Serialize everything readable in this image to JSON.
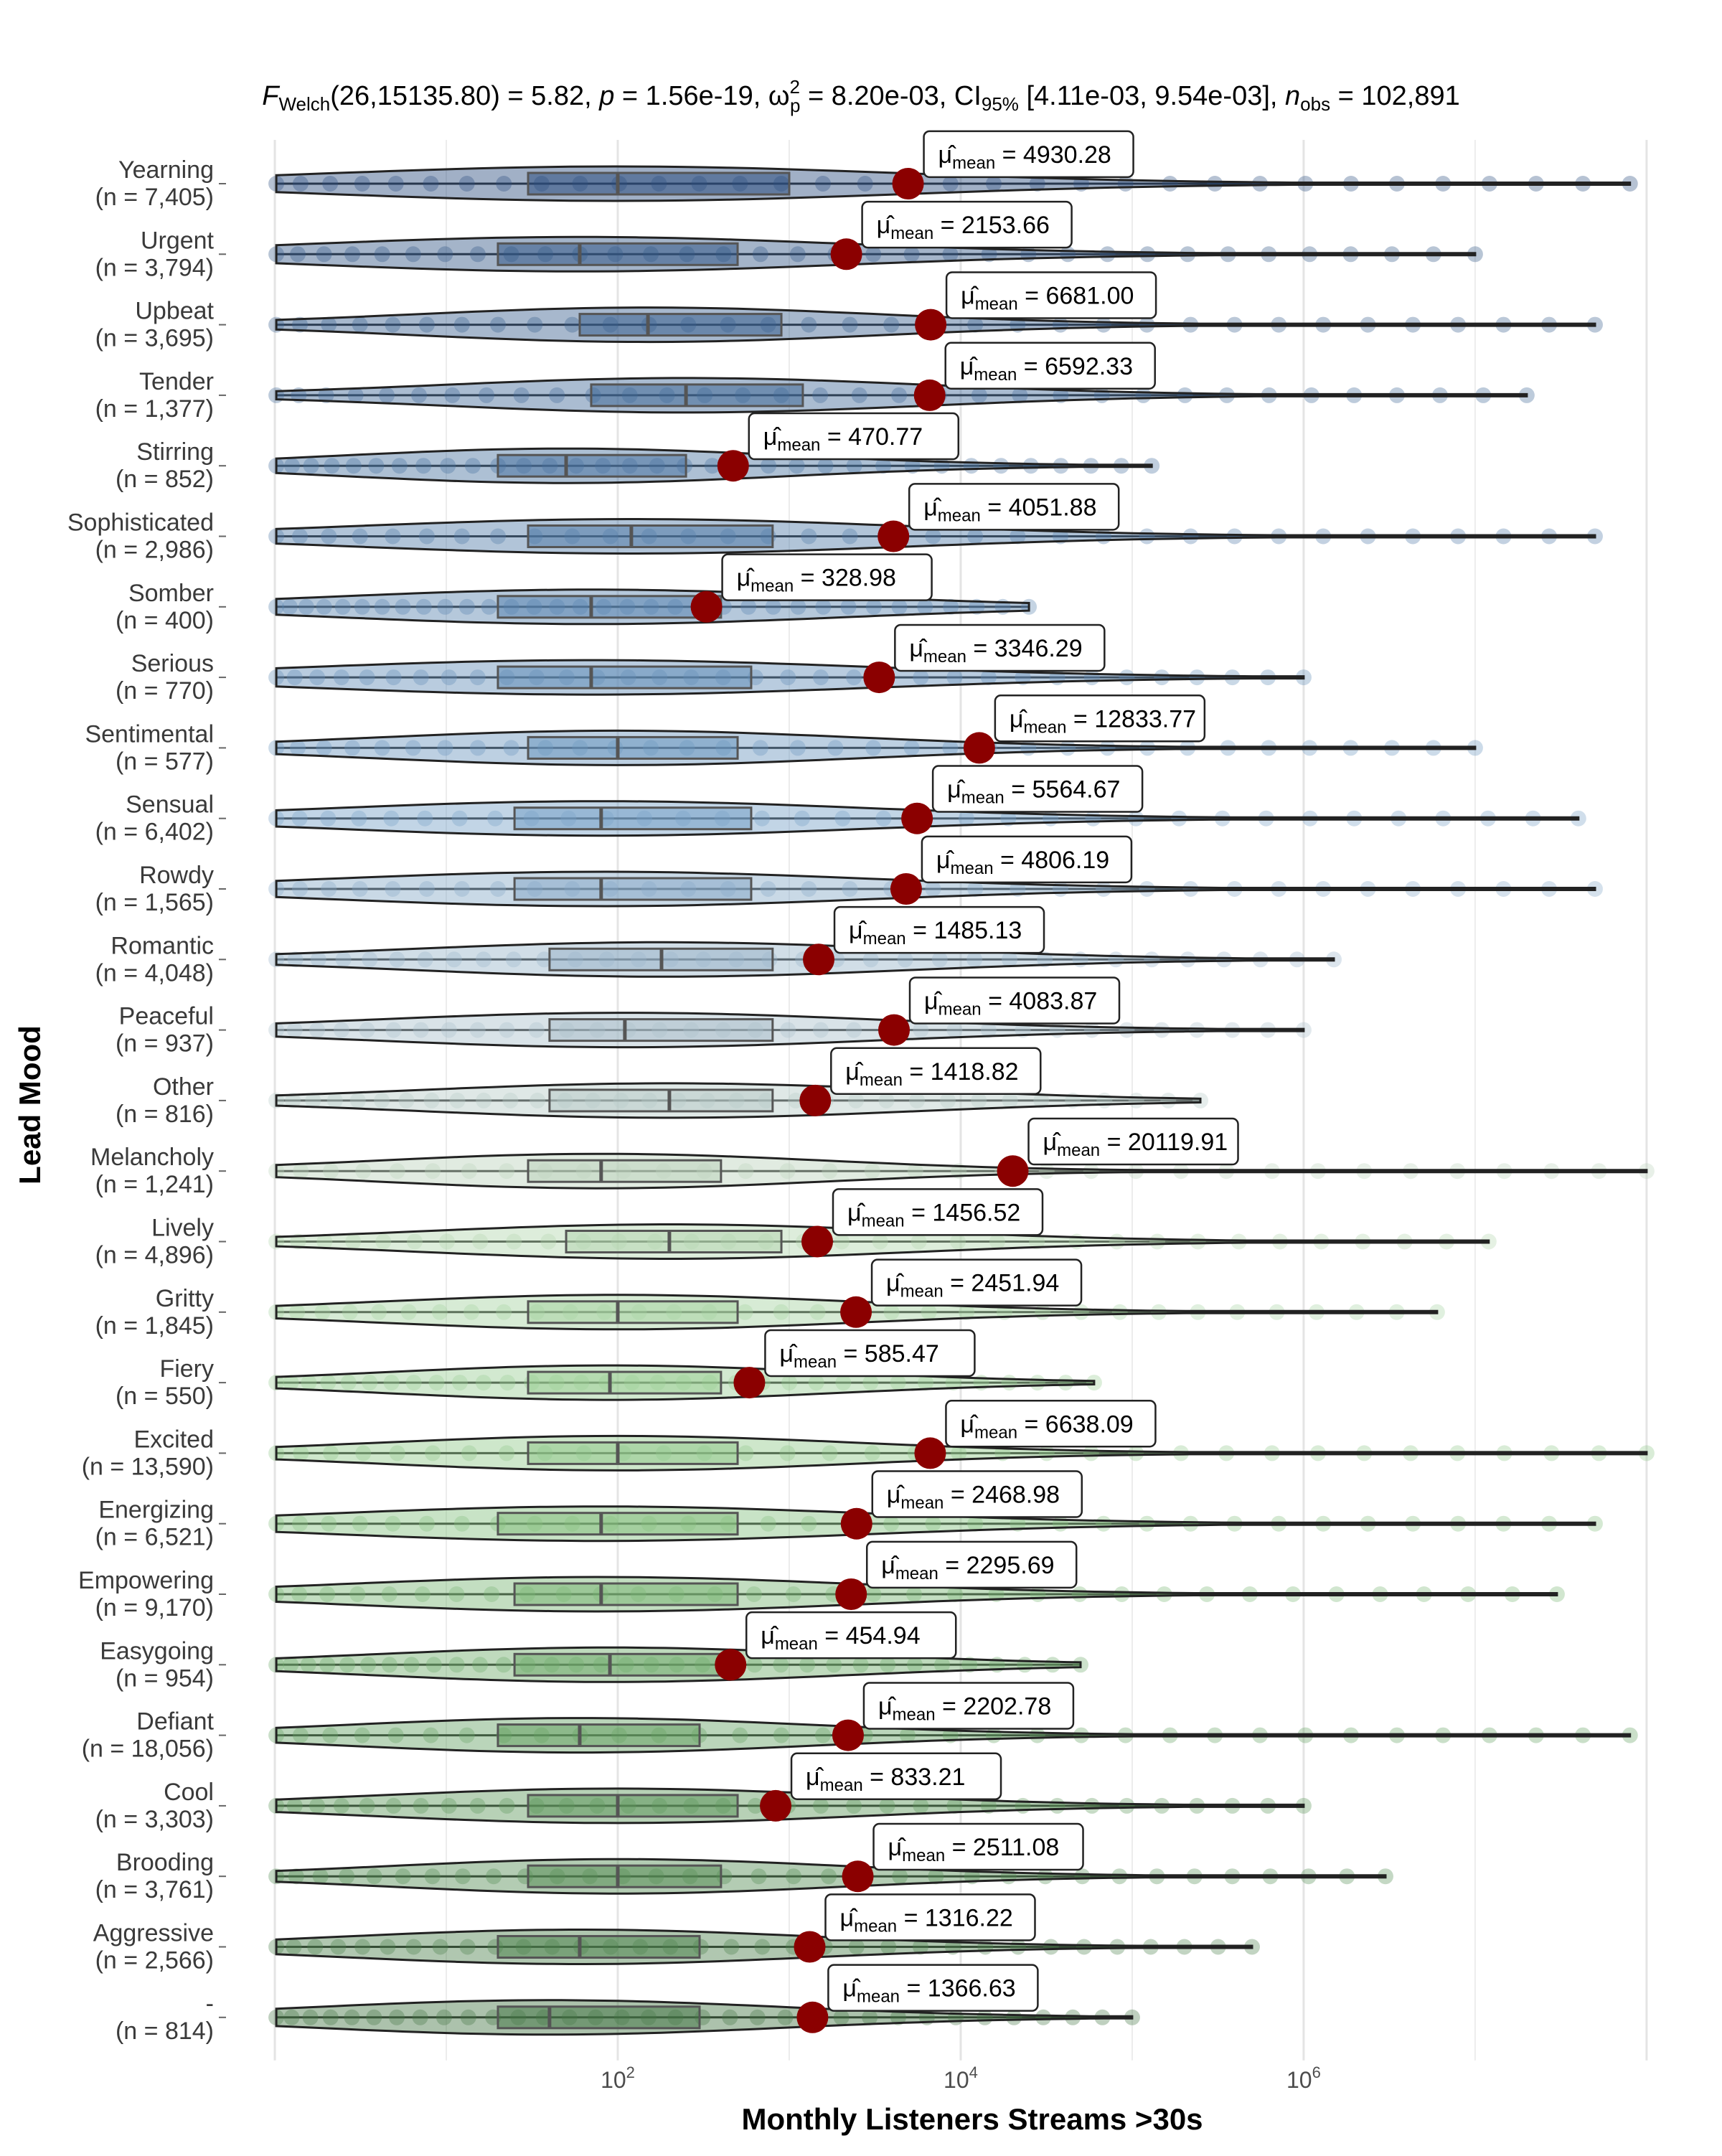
{
  "chart_data": {
    "type": "violin",
    "title": "F_Welch(26,15135.80) = 5.82, p = 1.56e-19, ω̂²_p = 8.20e-03, CI_95% [4.11e-03, 9.54e-03], n_obs = 102,891",
    "title_parts": {
      "f_label": "F",
      "f_sub": "Welch",
      "f_value": "(26,15135.80) = 5.82, ",
      "p_label": "p",
      "p_value": " = 1.56e-19, ",
      "omega": "ω",
      "omega_sup": "2",
      "omega_sub": "p",
      "omega_value": " = 8.20e-03, CI",
      "ci_sub": "95%",
      "ci_value": " [4.11e-03, 9.54e-03], ",
      "n_label": "n",
      "n_sub": "obs",
      "n_value": " = 102,891"
    },
    "xlabel": "Monthly Listeners Streams >30s",
    "ylabel": "Lead Mood",
    "x_scale": "log10",
    "xlim": [
      0.6,
      250000000
    ],
    "x_ticks": [
      {
        "value": 100,
        "base": "10",
        "exp": "2"
      },
      {
        "value": 10000,
        "base": "10",
        "exp": "4"
      },
      {
        "value": 1000000,
        "base": "10",
        "exp": "6"
      }
    ],
    "grid": true,
    "mean_label_prefix": "μ̂",
    "mean_label_sub": "mean",
    "categories": [
      {
        "name": "Yearning",
        "n": "(n = 7,405)",
        "mean": 4930.28,
        "mean_label": "= 4930.28",
        "q1": 30,
        "median": 100,
        "q3": 1000,
        "max": 80000000,
        "color": "#2e4f80"
      },
      {
        "name": "Urgent",
        "n": "(n = 3,794)",
        "mean": 2153.66,
        "mean_label": "= 2153.66",
        "q1": 20,
        "median": 60,
        "q3": 500,
        "max": 10000000,
        "color": "#355988"
      },
      {
        "name": "Upbeat",
        "n": "(n = 3,695)",
        "mean": 6681.0,
        "mean_label": "= 6681.00",
        "q1": 60,
        "median": 150,
        "q3": 900,
        "max": 50000000,
        "color": "#3b6190"
      },
      {
        "name": "Tender",
        "n": "(n = 1,377)",
        "mean": 6592.33,
        "mean_label": "= 6592.33",
        "q1": 70,
        "median": 250,
        "q3": 1200,
        "max": 20000000,
        "color": "#426a98"
      },
      {
        "name": "Stirring",
        "n": "(n = 852)",
        "mean": 470.77,
        "mean_label": "= 470.77",
        "q1": 20,
        "median": 50,
        "q3": 250,
        "max": 130000,
        "color": "#4a73a0"
      },
      {
        "name": "Sophisticated",
        "n": "(n = 2,986)",
        "mean": 4051.88,
        "mean_label": "= 4051.88",
        "q1": 30,
        "median": 120,
        "q3": 800,
        "max": 50000000,
        "color": "#527ca8"
      },
      {
        "name": "Somber",
        "n": "(n = 400)",
        "mean": 328.98,
        "mean_label": "= 328.98",
        "q1": 20,
        "median": 70,
        "q3": 400,
        "max": 25000,
        "color": "#5a85b0"
      },
      {
        "name": "Serious",
        "n": "(n = 770)",
        "mean": 3346.29,
        "mean_label": "= 3346.29",
        "q1": 20,
        "median": 70,
        "q3": 600,
        "max": 1000000,
        "color": "#638eb8"
      },
      {
        "name": "Sentimental",
        "n": "(n = 577)",
        "mean": 12833.77,
        "mean_label": "= 12833.77",
        "q1": 30,
        "median": 100,
        "q3": 500,
        "max": 10000000,
        "color": "#6c97bf"
      },
      {
        "name": "Sensual",
        "n": "(n = 6,402)",
        "mean": 5564.67,
        "mean_label": "= 5564.67",
        "q1": 25,
        "median": 80,
        "q3": 600,
        "max": 40000000,
        "color": "#77a1c7"
      },
      {
        "name": "Rowdy",
        "n": "(n = 1,565)",
        "mean": 4806.19,
        "mean_label": "= 4806.19",
        "q1": 25,
        "median": 80,
        "q3": 600,
        "max": 50000000,
        "color": "#88aac8"
      },
      {
        "name": "Romantic",
        "n": "(n = 4,048)",
        "mean": 1485.13,
        "mean_label": "= 1485.13",
        "q1": 40,
        "median": 180,
        "q3": 800,
        "max": 1500000,
        "color": "#9ab5ca"
      },
      {
        "name": "Peaceful",
        "n": "(n = 937)",
        "mean": 4083.87,
        "mean_label": "= 4083.87",
        "q1": 40,
        "median": 110,
        "q3": 800,
        "max": 1000000,
        "color": "#abc0cb"
      },
      {
        "name": "Other",
        "n": "(n = 816)",
        "mean": 1418.82,
        "mean_label": "= 1418.82",
        "q1": 40,
        "median": 200,
        "q3": 800,
        "max": 250000,
        "color": "#b8cbc8"
      },
      {
        "name": "Melancholy",
        "n": "(n = 1,241)",
        "mean": 20119.91,
        "mean_label": "= 20119.91",
        "q1": 30,
        "median": 80,
        "q3": 400,
        "max": 100000000,
        "color": "#bdd3bd"
      },
      {
        "name": "Lively",
        "n": "(n = 4,896)",
        "mean": 1456.52,
        "mean_label": "= 1456.52",
        "q1": 50,
        "median": 200,
        "q3": 900,
        "max": 12000000,
        "color": "#b4d6b0"
      },
      {
        "name": "Gritty",
        "n": "(n = 1,845)",
        "mean": 2451.94,
        "mean_label": "= 2451.94",
        "q1": 30,
        "median": 100,
        "q3": 500,
        "max": 6000000,
        "color": "#a7d3a2"
      },
      {
        "name": "Fiery",
        "n": "(n = 550)",
        "mean": 585.47,
        "mean_label": "= 585.47",
        "q1": 30,
        "median": 90,
        "q3": 400,
        "max": 60000,
        "color": "#9ccf96"
      },
      {
        "name": "Excited",
        "n": "(n = 13,590)",
        "mean": 6638.09,
        "mean_label": "= 6638.09",
        "q1": 30,
        "median": 100,
        "q3": 500,
        "max": 100000000,
        "color": "#92c98c"
      },
      {
        "name": "Energizing",
        "n": "(n = 6,521)",
        "mean": 2468.98,
        "mean_label": "= 2468.98",
        "q1": 20,
        "median": 80,
        "q3": 500,
        "max": 50000000,
        "color": "#86c080"
      },
      {
        "name": "Empowering",
        "n": "(n = 9,170)",
        "mean": 2295.69,
        "mean_label": "= 2295.69",
        "q1": 25,
        "median": 80,
        "q3": 500,
        "max": 30000000,
        "color": "#7bb676"
      },
      {
        "name": "Easygoing",
        "n": "(n = 954)",
        "mean": 454.94,
        "mean_label": "= 454.94",
        "q1": 25,
        "median": 90,
        "q3": 400,
        "max": 50000,
        "color": "#71ac6d"
      },
      {
        "name": "Defiant",
        "n": "(n = 18,056)",
        "mean": 2202.78,
        "mean_label": "= 2202.78",
        "q1": 20,
        "median": 60,
        "q3": 300,
        "max": 80000000,
        "color": "#67a265"
      },
      {
        "name": "Cool",
        "n": "(n = 3,303)",
        "mean": 833.21,
        "mean_label": "= 833.21",
        "q1": 30,
        "median": 100,
        "q3": 500,
        "max": 1000000,
        "color": "#5f985d"
      },
      {
        "name": "Brooding",
        "n": "(n = 3,761)",
        "mean": 2511.08,
        "mean_label": "= 2511.08",
        "q1": 30,
        "median": 100,
        "q3": 400,
        "max": 3000000,
        "color": "#578e56"
      },
      {
        "name": "Aggressive",
        "n": "(n = 2,566)",
        "mean": 1316.22,
        "mean_label": "= 1316.22",
        "q1": 20,
        "median": 60,
        "q3": 300,
        "max": 500000,
        "color": "#4f834f"
      },
      {
        "name": "-",
        "n": "(n = 814)",
        "mean": 1366.63,
        "mean_label": "= 1366.63",
        "q1": 20,
        "median": 40,
        "q3": 300,
        "max": 100000,
        "color": "#477848"
      }
    ],
    "mean_point_color": "#8b0000"
  }
}
